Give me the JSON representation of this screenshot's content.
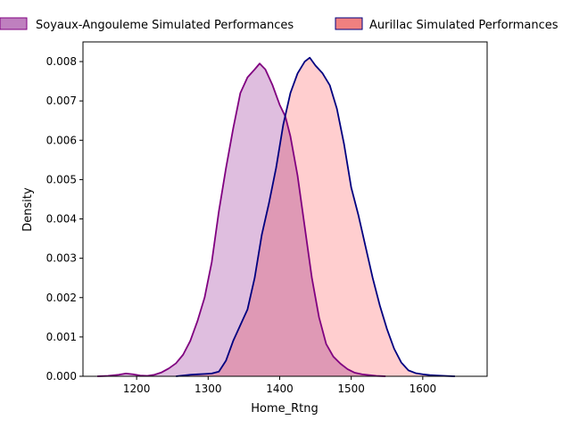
{
  "chart_data": {
    "type": "area",
    "title": "",
    "xlabel": "Home_Rtng",
    "ylabel": "Density",
    "xlim": [
      1125,
      1690
    ],
    "ylim": [
      0,
      0.0085
    ],
    "x_ticks": [
      1200,
      1300,
      1400,
      1500,
      1600
    ],
    "x_tick_labels": [
      "1200",
      "1300",
      "1400",
      "1500",
      "1600"
    ],
    "y_ticks": [
      0,
      0.001,
      0.002,
      0.003,
      0.004,
      0.005,
      0.006,
      0.007,
      0.008
    ],
    "y_tick_labels": [
      "0.000",
      "0.001",
      "0.002",
      "0.003",
      "0.004",
      "0.005",
      "0.006",
      "0.007",
      "0.008"
    ],
    "grid": false,
    "legend_position": "top, outside plot",
    "series": [
      {
        "name": "Soyaux-Angouleme Simulated Performances",
        "line_color": "#800080",
        "fill_color": "#DFBEDF",
        "legend_swatch_color": "#BF80BF",
        "points": [
          [
            1145,
            0.0
          ],
          [
            1160,
            1e-05
          ],
          [
            1175,
            4e-05
          ],
          [
            1185,
            7e-05
          ],
          [
            1195,
            5e-05
          ],
          [
            1205,
            2e-05
          ],
          [
            1215,
            1e-05
          ],
          [
            1225,
            4e-05
          ],
          [
            1235,
            0.0001
          ],
          [
            1245,
            0.0002
          ],
          [
            1255,
            0.00033
          ],
          [
            1265,
            0.00055
          ],
          [
            1275,
            0.0009
          ],
          [
            1285,
            0.0014
          ],
          [
            1295,
            0.002
          ],
          [
            1305,
            0.0029
          ],
          [
            1315,
            0.0042
          ],
          [
            1325,
            0.0053
          ],
          [
            1335,
            0.0063
          ],
          [
            1345,
            0.0072
          ],
          [
            1355,
            0.0076
          ],
          [
            1365,
            0.0078
          ],
          [
            1372,
            0.00795
          ],
          [
            1380,
            0.0078
          ],
          [
            1390,
            0.0074
          ],
          [
            1400,
            0.0069
          ],
          [
            1408,
            0.0066
          ],
          [
            1415,
            0.0061
          ],
          [
            1425,
            0.0051
          ],
          [
            1435,
            0.0038
          ],
          [
            1445,
            0.0025
          ],
          [
            1455,
            0.0015
          ],
          [
            1465,
            0.00082
          ],
          [
            1475,
            0.0005
          ],
          [
            1485,
            0.00032
          ],
          [
            1495,
            0.00018
          ],
          [
            1505,
            9e-05
          ],
          [
            1515,
            5e-05
          ],
          [
            1525,
            3e-05
          ],
          [
            1535,
            1e-05
          ],
          [
            1548,
            0.0
          ]
        ]
      },
      {
        "name": "Aurillac Simulated Performances",
        "line_color": "#000080",
        "fill_color": "#FFBEBF",
        "legend_swatch_color": "#F08080",
        "points": [
          [
            1255,
            0.0
          ],
          [
            1265,
            2e-05
          ],
          [
            1275,
            4e-05
          ],
          [
            1285,
            5e-05
          ],
          [
            1295,
            6e-05
          ],
          [
            1305,
            7e-05
          ],
          [
            1315,
            0.00012
          ],
          [
            1325,
            0.0004
          ],
          [
            1335,
            0.0009
          ],
          [
            1345,
            0.0013
          ],
          [
            1355,
            0.0017
          ],
          [
            1365,
            0.0025
          ],
          [
            1375,
            0.0036
          ],
          [
            1385,
            0.0044
          ],
          [
            1395,
            0.0053
          ],
          [
            1405,
            0.0064
          ],
          [
            1415,
            0.0072
          ],
          [
            1425,
            0.0077
          ],
          [
            1435,
            0.008
          ],
          [
            1442,
            0.0081
          ],
          [
            1450,
            0.0079
          ],
          [
            1460,
            0.0077
          ],
          [
            1470,
            0.0074
          ],
          [
            1480,
            0.0068
          ],
          [
            1490,
            0.0059
          ],
          [
            1500,
            0.0048
          ],
          [
            1510,
            0.0041
          ],
          [
            1520,
            0.0033
          ],
          [
            1530,
            0.0025
          ],
          [
            1540,
            0.0018
          ],
          [
            1550,
            0.0012
          ],
          [
            1560,
            0.0007
          ],
          [
            1570,
            0.00035
          ],
          [
            1580,
            0.00015
          ],
          [
            1590,
            8e-05
          ],
          [
            1600,
            5e-05
          ],
          [
            1610,
            3e-05
          ],
          [
            1620,
            2e-05
          ],
          [
            1630,
            1e-05
          ],
          [
            1645,
            0.0
          ]
        ]
      }
    ]
  }
}
